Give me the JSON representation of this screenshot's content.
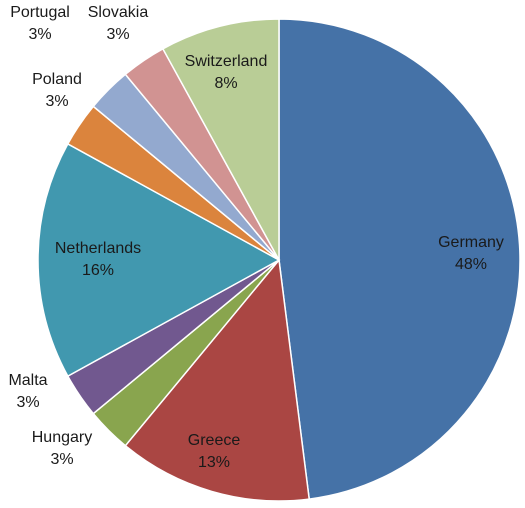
{
  "chart_data": {
    "type": "pie",
    "title": "",
    "start_angle_deg": 0,
    "direction": "clockwise",
    "slices": [
      {
        "label": "Germany",
        "value": 48,
        "display_value": "48%",
        "color": "#4572A7"
      },
      {
        "label": "Greece",
        "value": 13,
        "display_value": "13%",
        "color": "#AA4643"
      },
      {
        "label": "Hungary",
        "value": 3,
        "display_value": "3%",
        "color": "#89A54E"
      },
      {
        "label": "Malta",
        "value": 3,
        "display_value": "3%",
        "color": "#71588F"
      },
      {
        "label": "Netherlands",
        "value": 16,
        "display_value": "16%",
        "color": "#4198AF"
      },
      {
        "label": "Poland",
        "value": 3,
        "display_value": "3%",
        "color": "#DB843D"
      },
      {
        "label": "Portugal",
        "value": 3,
        "display_value": "3%",
        "color": "#93A9CF"
      },
      {
        "label": "Slovakia",
        "value": 3,
        "display_value": "3%",
        "color": "#D19392"
      },
      {
        "label": "Switzerland",
        "value": 8,
        "display_value": "8%",
        "color": "#B9CD96"
      }
    ]
  }
}
